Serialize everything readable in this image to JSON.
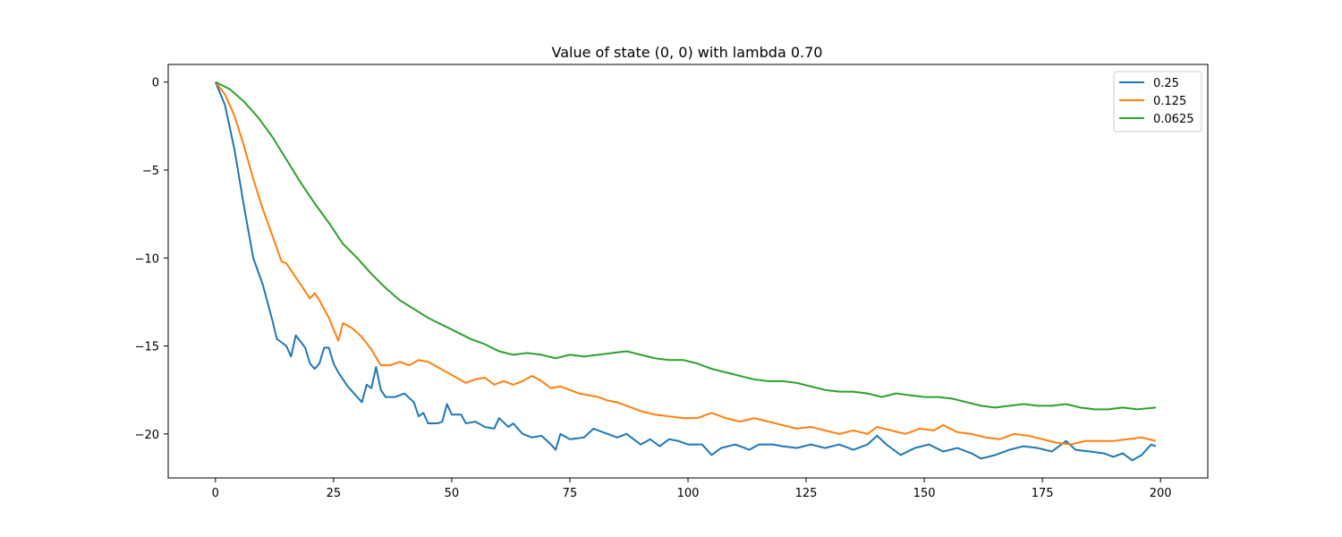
{
  "chart_data": {
    "type": "line",
    "title": "Value of state (0, 0) with lambda 0.70",
    "xlabel": "",
    "ylabel": "",
    "xlim": [
      -10,
      210
    ],
    "ylim": [
      -22.5,
      1.0
    ],
    "xticks": [
      0,
      25,
      50,
      75,
      100,
      125,
      150,
      175,
      200
    ],
    "yticks": [
      0,
      -5,
      -10,
      -15,
      -20
    ],
    "ytick_labels": [
      "0",
      "−5",
      "−10",
      "−15",
      "−20"
    ],
    "grid": false,
    "legend_position": "top-right",
    "series": [
      {
        "name": "0.25",
        "color": "#1f77b4",
        "knots": [
          [
            0,
            0
          ],
          [
            2,
            -1.3
          ],
          [
            4,
            -3.8
          ],
          [
            6,
            -7.0
          ],
          [
            8,
            -10.0
          ],
          [
            10,
            -11.5
          ],
          [
            12,
            -13.5
          ],
          [
            13,
            -14.6
          ],
          [
            15,
            -15.0
          ],
          [
            16,
            -15.6
          ],
          [
            17,
            -14.4
          ],
          [
            19,
            -15.1
          ],
          [
            20,
            -16.0
          ],
          [
            21,
            -16.3
          ],
          [
            22,
            -16.0
          ],
          [
            23,
            -15.1
          ],
          [
            24,
            -15.1
          ],
          [
            25,
            -16.0
          ],
          [
            26,
            -16.5
          ],
          [
            28,
            -17.3
          ],
          [
            30,
            -17.9
          ],
          [
            31,
            -18.2
          ],
          [
            32,
            -17.2
          ],
          [
            33,
            -17.4
          ],
          [
            34,
            -16.2
          ],
          [
            35,
            -17.5
          ],
          [
            36,
            -17.9
          ],
          [
            38,
            -17.9
          ],
          [
            40,
            -17.7
          ],
          [
            42,
            -18.2
          ],
          [
            43,
            -19.0
          ],
          [
            44,
            -18.8
          ],
          [
            45,
            -19.4
          ],
          [
            47,
            -19.4
          ],
          [
            48,
            -19.3
          ],
          [
            49,
            -18.3
          ],
          [
            50,
            -18.9
          ],
          [
            52,
            -18.9
          ],
          [
            53,
            -19.4
          ],
          [
            55,
            -19.3
          ],
          [
            57,
            -19.6
          ],
          [
            59,
            -19.7
          ],
          [
            60,
            -19.1
          ],
          [
            62,
            -19.6
          ],
          [
            63,
            -19.4
          ],
          [
            65,
            -20.0
          ],
          [
            67,
            -20.2
          ],
          [
            69,
            -20.1
          ],
          [
            71,
            -20.6
          ],
          [
            72,
            -20.9
          ],
          [
            73,
            -20.0
          ],
          [
            75,
            -20.3
          ],
          [
            78,
            -20.2
          ],
          [
            80,
            -19.7
          ],
          [
            82,
            -19.9
          ],
          [
            85,
            -20.2
          ],
          [
            87,
            -20.0
          ],
          [
            90,
            -20.6
          ],
          [
            92,
            -20.3
          ],
          [
            94,
            -20.7
          ],
          [
            96,
            -20.3
          ],
          [
            98,
            -20.4
          ],
          [
            100,
            -20.6
          ],
          [
            103,
            -20.6
          ],
          [
            105,
            -21.2
          ],
          [
            107,
            -20.8
          ],
          [
            110,
            -20.6
          ],
          [
            113,
            -20.9
          ],
          [
            115,
            -20.6
          ],
          [
            118,
            -20.6
          ],
          [
            120,
            -20.7
          ],
          [
            123,
            -20.8
          ],
          [
            126,
            -20.6
          ],
          [
            129,
            -20.8
          ],
          [
            132,
            -20.6
          ],
          [
            135,
            -20.9
          ],
          [
            138,
            -20.6
          ],
          [
            140,
            -20.1
          ],
          [
            142,
            -20.6
          ],
          [
            145,
            -21.2
          ],
          [
            148,
            -20.8
          ],
          [
            151,
            -20.6
          ],
          [
            154,
            -21.0
          ],
          [
            157,
            -20.8
          ],
          [
            160,
            -21.1
          ],
          [
            162,
            -21.4
          ],
          [
            165,
            -21.2
          ],
          [
            168,
            -20.9
          ],
          [
            171,
            -20.7
          ],
          [
            174,
            -20.8
          ],
          [
            177,
            -21.0
          ],
          [
            180,
            -20.4
          ],
          [
            182,
            -20.9
          ],
          [
            185,
            -21.0
          ],
          [
            188,
            -21.1
          ],
          [
            190,
            -21.3
          ],
          [
            192,
            -21.1
          ],
          [
            194,
            -21.5
          ],
          [
            196,
            -21.2
          ],
          [
            198,
            -20.6
          ],
          [
            199,
            -20.7
          ]
        ]
      },
      {
        "name": "0.125",
        "color": "#ff7f0e",
        "knots": [
          [
            0,
            0
          ],
          [
            2,
            -0.7
          ],
          [
            4,
            -1.9
          ],
          [
            6,
            -3.6
          ],
          [
            8,
            -5.5
          ],
          [
            10,
            -7.2
          ],
          [
            12,
            -8.7
          ],
          [
            14,
            -10.2
          ],
          [
            15,
            -10.3
          ],
          [
            17,
            -11.1
          ],
          [
            19,
            -11.9
          ],
          [
            20,
            -12.3
          ],
          [
            21,
            -12.0
          ],
          [
            22,
            -12.4
          ],
          [
            24,
            -13.4
          ],
          [
            26,
            -14.7
          ],
          [
            27,
            -13.7
          ],
          [
            29,
            -14.0
          ],
          [
            31,
            -14.5
          ],
          [
            33,
            -15.2
          ],
          [
            35,
            -16.1
          ],
          [
            37,
            -16.1
          ],
          [
            39,
            -15.9
          ],
          [
            41,
            -16.1
          ],
          [
            43,
            -15.8
          ],
          [
            45,
            -15.9
          ],
          [
            47,
            -16.2
          ],
          [
            49,
            -16.5
          ],
          [
            51,
            -16.8
          ],
          [
            53,
            -17.1
          ],
          [
            55,
            -16.9
          ],
          [
            57,
            -16.8
          ],
          [
            59,
            -17.2
          ],
          [
            61,
            -17.0
          ],
          [
            63,
            -17.2
          ],
          [
            65,
            -17.0
          ],
          [
            67,
            -16.7
          ],
          [
            69,
            -17.0
          ],
          [
            71,
            -17.4
          ],
          [
            73,
            -17.3
          ],
          [
            75,
            -17.5
          ],
          [
            77,
            -17.7
          ],
          [
            79,
            -17.8
          ],
          [
            81,
            -17.9
          ],
          [
            83,
            -18.1
          ],
          [
            85,
            -18.2
          ],
          [
            87,
            -18.4
          ],
          [
            90,
            -18.7
          ],
          [
            93,
            -18.9
          ],
          [
            96,
            -19.0
          ],
          [
            99,
            -19.1
          ],
          [
            102,
            -19.1
          ],
          [
            105,
            -18.8
          ],
          [
            108,
            -19.1
          ],
          [
            111,
            -19.3
          ],
          [
            114,
            -19.1
          ],
          [
            117,
            -19.3
          ],
          [
            120,
            -19.5
          ],
          [
            123,
            -19.7
          ],
          [
            126,
            -19.6
          ],
          [
            129,
            -19.8
          ],
          [
            132,
            -20.0
          ],
          [
            135,
            -19.8
          ],
          [
            138,
            -20.0
          ],
          [
            140,
            -19.6
          ],
          [
            143,
            -19.8
          ],
          [
            146,
            -20.0
          ],
          [
            149,
            -19.7
          ],
          [
            152,
            -19.8
          ],
          [
            154,
            -19.5
          ],
          [
            157,
            -19.9
          ],
          [
            160,
            -20.0
          ],
          [
            163,
            -20.2
          ],
          [
            166,
            -20.3
          ],
          [
            169,
            -20.0
          ],
          [
            172,
            -20.1
          ],
          [
            175,
            -20.3
          ],
          [
            178,
            -20.5
          ],
          [
            181,
            -20.6
          ],
          [
            184,
            -20.4
          ],
          [
            187,
            -20.4
          ],
          [
            190,
            -20.4
          ],
          [
            193,
            -20.3
          ],
          [
            196,
            -20.2
          ],
          [
            199,
            -20.4
          ]
        ]
      },
      {
        "name": "0.0625",
        "color": "#2ca02c",
        "knots": [
          [
            0,
            0
          ],
          [
            3,
            -0.4
          ],
          [
            6,
            -1.1
          ],
          [
            9,
            -2.0
          ],
          [
            12,
            -3.1
          ],
          [
            15,
            -4.4
          ],
          [
            18,
            -5.7
          ],
          [
            21,
            -6.9
          ],
          [
            24,
            -8.0
          ],
          [
            27,
            -9.2
          ],
          [
            30,
            -10.0
          ],
          [
            33,
            -10.9
          ],
          [
            36,
            -11.7
          ],
          [
            39,
            -12.4
          ],
          [
            42,
            -12.9
          ],
          [
            45,
            -13.4
          ],
          [
            48,
            -13.8
          ],
          [
            51,
            -14.2
          ],
          [
            54,
            -14.6
          ],
          [
            57,
            -14.9
          ],
          [
            60,
            -15.3
          ],
          [
            63,
            -15.5
          ],
          [
            66,
            -15.4
          ],
          [
            69,
            -15.5
          ],
          [
            72,
            -15.7
          ],
          [
            75,
            -15.5
          ],
          [
            78,
            -15.6
          ],
          [
            81,
            -15.5
          ],
          [
            84,
            -15.4
          ],
          [
            87,
            -15.3
          ],
          [
            90,
            -15.5
          ],
          [
            93,
            -15.7
          ],
          [
            96,
            -15.8
          ],
          [
            99,
            -15.8
          ],
          [
            102,
            -16.0
          ],
          [
            105,
            -16.3
          ],
          [
            108,
            -16.5
          ],
          [
            111,
            -16.7
          ],
          [
            114,
            -16.9
          ],
          [
            117,
            -17.0
          ],
          [
            120,
            -17.0
          ],
          [
            123,
            -17.1
          ],
          [
            126,
            -17.3
          ],
          [
            129,
            -17.5
          ],
          [
            132,
            -17.6
          ],
          [
            135,
            -17.6
          ],
          [
            138,
            -17.7
          ],
          [
            141,
            -17.9
          ],
          [
            144,
            -17.7
          ],
          [
            147,
            -17.8
          ],
          [
            150,
            -17.9
          ],
          [
            153,
            -17.9
          ],
          [
            156,
            -18.0
          ],
          [
            159,
            -18.2
          ],
          [
            162,
            -18.4
          ],
          [
            165,
            -18.5
          ],
          [
            168,
            -18.4
          ],
          [
            171,
            -18.3
          ],
          [
            174,
            -18.4
          ],
          [
            177,
            -18.4
          ],
          [
            180,
            -18.3
          ],
          [
            183,
            -18.5
          ],
          [
            186,
            -18.6
          ],
          [
            189,
            -18.6
          ],
          [
            192,
            -18.5
          ],
          [
            195,
            -18.6
          ],
          [
            199,
            -18.5
          ]
        ]
      }
    ]
  }
}
